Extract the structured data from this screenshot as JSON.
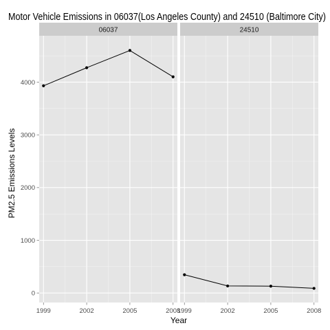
{
  "chart_data": {
    "type": "line",
    "title": "Motor Vehicle Emissions in 06037(Los Angeles County) and 24510 (Baltimore City)",
    "xlabel": "Year",
    "ylabel": "PM2.5 Emissions Levels",
    "x_ticks": [
      "1999",
      "2002",
      "2005",
      "2008"
    ],
    "y_ticks": [
      "0",
      "1000",
      "2000",
      "3000",
      "4000"
    ],
    "xlim": [
      1998.7,
      2008.3
    ],
    "ylim": [
      -180,
      4880
    ],
    "grid": true,
    "legend": "none",
    "facets": [
      {
        "label": "06037",
        "x": [
          1999,
          2002,
          2005,
          2008
        ],
        "y": [
          3931,
          4274,
          4601,
          4101
        ]
      },
      {
        "label": "24510",
        "x": [
          1999,
          2002,
          2005,
          2008
        ],
        "y": [
          347,
          134,
          130,
          88
        ]
      }
    ],
    "colors": {
      "panel_bg": "#e5e5e5",
      "strip_bg": "#cccccc",
      "grid_major": "#ffffff",
      "grid_minor": "#f2f2f2",
      "line": "#000000",
      "point": "#000000"
    }
  }
}
